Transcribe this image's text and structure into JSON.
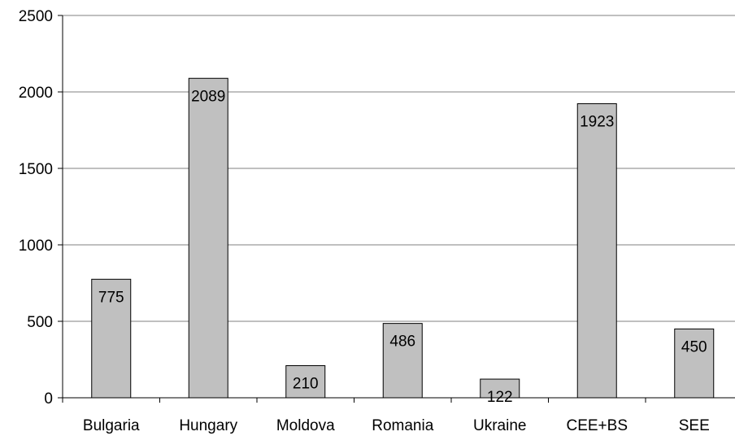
{
  "chart_data": {
    "type": "bar",
    "categories": [
      "Bulgaria",
      "Hungary",
      "Moldova",
      "Romania",
      "Ukraine",
      "CEE+BS",
      "SEE"
    ],
    "values": [
      775,
      2089,
      210,
      486,
      122,
      1923,
      450
    ],
    "data_labels": [
      "775",
      "2089",
      "210",
      "486",
      "122",
      "1923",
      "450"
    ],
    "ylim": [
      0,
      2500
    ],
    "yticks": [
      0,
      500,
      1000,
      1500,
      2000,
      2500
    ],
    "ytick_labels": [
      "0",
      "500",
      "1000",
      "1500",
      "2000",
      "2500"
    ],
    "grid": true,
    "legend": "none",
    "colors": {
      "bar_fill": "#c0c0c0",
      "bar_stroke": "#000000",
      "grid": "#808080",
      "axis": "#000000"
    }
  }
}
